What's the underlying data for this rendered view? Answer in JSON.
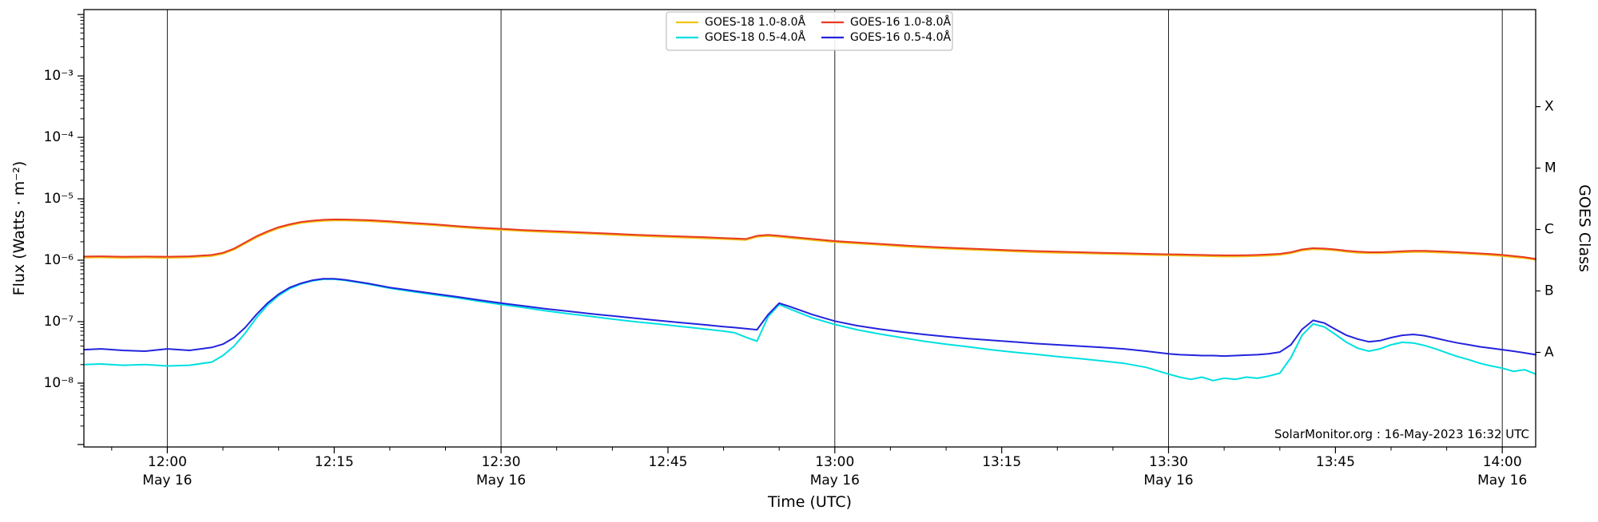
{
  "page": {
    "background": "#ffffff"
  },
  "chart_data": {
    "type": "line",
    "title": "",
    "xlabel": "Time (UTC)",
    "ylabel": "Flux (Watts · m⁻²)",
    "ylabel_right": "GOES Class",
    "watermark": "SolarMonitor.org : 16-May-2023 16:32 UTC",
    "x_unit": "minutes from 12:00 UTC on 16-May-2023",
    "xlim": [
      -7.5,
      123
    ],
    "y_log10_range": [
      -9.04,
      -1.92
    ],
    "x_gridlines_t": [
      0,
      30,
      60,
      90,
      120
    ],
    "x_minor_step": 5,
    "x_major_ticks": [
      {
        "t": 0,
        "label": "12:00",
        "sub": "May 16"
      },
      {
        "t": 15,
        "label": "12:15"
      },
      {
        "t": 30,
        "label": "12:30",
        "sub": "May 16"
      },
      {
        "t": 45,
        "label": "12:45"
      },
      {
        "t": 60,
        "label": "13:00",
        "sub": "May 16"
      },
      {
        "t": 75,
        "label": "13:15"
      },
      {
        "t": 90,
        "label": "13:30",
        "sub": "May 16"
      },
      {
        "t": 105,
        "label": "13:45"
      },
      {
        "t": 120,
        "label": "14:00",
        "sub": "May 16"
      }
    ],
    "y_major_ticks": [
      {
        "exp": -3,
        "label": "10⁻³"
      },
      {
        "exp": -4,
        "label": "10⁻⁴"
      },
      {
        "exp": -5,
        "label": "10⁻⁵"
      },
      {
        "exp": -6,
        "label": "10⁻⁶"
      },
      {
        "exp": -7,
        "label": "10⁻⁷"
      },
      {
        "exp": -8,
        "label": "10⁻⁸"
      }
    ],
    "y_unlabeled_tick_exps": [
      -2,
      -9
    ],
    "goes_class_ticks": [
      {
        "label": "X",
        "log10": -3.5
      },
      {
        "label": "M",
        "log10": -4.5
      },
      {
        "label": "C",
        "log10": -5.5
      },
      {
        "label": "B",
        "log10": -6.5
      },
      {
        "label": "A",
        "log10": -7.5
      }
    ],
    "legend": {
      "position": "upper-center",
      "columns": 2,
      "row_order": "col-major"
    },
    "x": [
      -7.5,
      -6,
      -4,
      -2,
      0,
      2,
      4,
      5,
      6,
      7,
      8,
      9,
      10,
      11,
      12,
      13,
      14,
      15,
      16,
      18,
      20,
      22,
      24,
      26,
      28,
      30,
      32,
      34,
      36,
      38,
      40,
      42,
      44,
      46,
      48,
      50,
      51,
      52,
      53,
      54,
      55,
      56,
      58,
      60,
      62,
      64,
      66,
      68,
      70,
      72,
      74,
      76,
      78,
      80,
      82,
      84,
      86,
      88,
      90,
      91,
      92,
      93,
      94,
      95,
      96,
      97,
      98,
      99,
      100,
      101,
      102,
      103,
      104,
      105,
      106,
      107,
      108,
      109,
      110,
      111,
      112,
      113,
      114,
      115,
      116,
      117,
      118,
      119,
      120,
      121,
      122,
      123
    ],
    "series": [
      {
        "name": "GOES-18 1.0-8.0Å",
        "color": "#f0c414",
        "y": [
          1.1e-06,
          1.11e-06,
          1.09e-06,
          1.1e-06,
          1.09e-06,
          1.11e-06,
          1.17e-06,
          1.27e-06,
          1.49e-06,
          1.87e-06,
          2.35e-06,
          2.83e-06,
          3.31e-06,
          3.7e-06,
          4.03e-06,
          4.22e-06,
          4.37e-06,
          4.44e-06,
          4.42e-06,
          4.32e-06,
          4.13e-06,
          3.89e-06,
          3.7e-06,
          3.46e-06,
          3.26e-06,
          3.12e-06,
          2.98e-06,
          2.88e-06,
          2.78e-06,
          2.69e-06,
          2.59e-06,
          2.5e-06,
          2.42e-06,
          2.35e-06,
          2.28e-06,
          2.21e-06,
          2.17e-06,
          2.13e-06,
          2.4e-06,
          2.48e-06,
          2.4e-06,
          2.3e-06,
          2.13e-06,
          1.97e-06,
          1.87e-06,
          1.78e-06,
          1.68e-06,
          1.6e-06,
          1.54e-06,
          1.49e-06,
          1.44e-06,
          1.39e-06,
          1.35e-06,
          1.32e-06,
          1.3e-06,
          1.27e-06,
          1.25e-06,
          1.22e-06,
          1.2e-06,
          1.19e-06,
          1.18e-06,
          1.17e-06,
          1.16e-06,
          1.15e-06,
          1.15e-06,
          1.16e-06,
          1.17e-06,
          1.19e-06,
          1.22e-06,
          1.3e-06,
          1.44e-06,
          1.51e-06,
          1.49e-06,
          1.44e-06,
          1.37e-06,
          1.32e-06,
          1.3e-06,
          1.3e-06,
          1.32e-06,
          1.34e-06,
          1.36e-06,
          1.36e-06,
          1.34e-06,
          1.32e-06,
          1.3e-06,
          1.27e-06,
          1.24e-06,
          1.21e-06,
          1.17e-06,
          1.12e-06,
          1.08e-06,
          1.01e-06
        ]
      },
      {
        "name": "GOES-18 0.5-4.0Å",
        "color": "#00e0e0",
        "y": [
          2e-08,
          2.05e-08,
          1.95e-08,
          2e-08,
          1.9e-08,
          1.95e-08,
          2.2e-08,
          2.8e-08,
          4e-08,
          6.5e-08,
          1.15e-07,
          1.85e-07,
          2.65e-07,
          3.45e-07,
          4.1e-07,
          4.6e-07,
          4.9e-07,
          4.9e-07,
          4.7e-07,
          4.1e-07,
          3.5e-07,
          3.1e-07,
          2.75e-07,
          2.45e-07,
          2.15e-07,
          1.9e-07,
          1.7e-07,
          1.5e-07,
          1.35e-07,
          1.22e-07,
          1.1e-07,
          1e-07,
          9.2e-08,
          8.4e-08,
          7.7e-08,
          7e-08,
          6.6e-08,
          5.6e-08,
          4.8e-08,
          1.2e-07,
          1.9e-07,
          1.6e-07,
          1.15e-07,
          9e-08,
          7.4e-08,
          6.3e-08,
          5.5e-08,
          4.8e-08,
          4.3e-08,
          3.9e-08,
          3.5e-08,
          3.2e-08,
          2.95e-08,
          2.7e-08,
          2.5e-08,
          2.3e-08,
          2.1e-08,
          1.8e-08,
          1.4e-08,
          1.25e-08,
          1.15e-08,
          1.25e-08,
          1.1e-08,
          1.2e-08,
          1.15e-08,
          1.25e-08,
          1.2e-08,
          1.3e-08,
          1.45e-08,
          2.6e-08,
          6e-08,
          9.2e-08,
          8.2e-08,
          6.2e-08,
          4.6e-08,
          3.7e-08,
          3.3e-08,
          3.6e-08,
          4.2e-08,
          4.6e-08,
          4.5e-08,
          4.1e-08,
          3.6e-08,
          3.1e-08,
          2.7e-08,
          2.4e-08,
          2.1e-08,
          1.9e-08,
          1.75e-08,
          1.55e-08,
          1.65e-08,
          1.4e-08
        ]
      },
      {
        "name": "GOES-16 1.0-8.0Å",
        "color": "#e83a22",
        "y": [
          1.15e-06,
          1.16e-06,
          1.14e-06,
          1.15e-06,
          1.14e-06,
          1.16e-06,
          1.22e-06,
          1.32e-06,
          1.55e-06,
          1.95e-06,
          2.45e-06,
          2.95e-06,
          3.45e-06,
          3.85e-06,
          4.2e-06,
          4.4e-06,
          4.55e-06,
          4.62e-06,
          4.6e-06,
          4.5e-06,
          4.3e-06,
          4.05e-06,
          3.85e-06,
          3.6e-06,
          3.4e-06,
          3.25e-06,
          3.1e-06,
          3e-06,
          2.9e-06,
          2.8e-06,
          2.7e-06,
          2.6e-06,
          2.52e-06,
          2.45e-06,
          2.38e-06,
          2.3e-06,
          2.26e-06,
          2.22e-06,
          2.5e-06,
          2.58e-06,
          2.5e-06,
          2.4e-06,
          2.22e-06,
          2.05e-06,
          1.95e-06,
          1.85e-06,
          1.75e-06,
          1.67e-06,
          1.6e-06,
          1.55e-06,
          1.5e-06,
          1.45e-06,
          1.41e-06,
          1.38e-06,
          1.35e-06,
          1.32e-06,
          1.3e-06,
          1.27e-06,
          1.25e-06,
          1.24e-06,
          1.23e-06,
          1.22e-06,
          1.21e-06,
          1.2e-06,
          1.2e-06,
          1.21e-06,
          1.22e-06,
          1.24e-06,
          1.27e-06,
          1.35e-06,
          1.5e-06,
          1.57e-06,
          1.55e-06,
          1.5e-06,
          1.43e-06,
          1.38e-06,
          1.35e-06,
          1.35e-06,
          1.37e-06,
          1.4e-06,
          1.42e-06,
          1.42e-06,
          1.4e-06,
          1.38e-06,
          1.35e-06,
          1.32e-06,
          1.29e-06,
          1.26e-06,
          1.22e-06,
          1.17e-06,
          1.12e-06,
          1.05e-06
        ]
      },
      {
        "name": "GOES-16 0.5-4.0Å",
        "color": "#2323dd",
        "y": [
          3.5e-08,
          3.6e-08,
          3.4e-08,
          3.3e-08,
          3.6e-08,
          3.4e-08,
          3.8e-08,
          4.3e-08,
          5.5e-08,
          8e-08,
          1.3e-07,
          2e-07,
          2.8e-07,
          3.6e-07,
          4.2e-07,
          4.7e-07,
          5e-07,
          5e-07,
          4.8e-07,
          4.2e-07,
          3.6e-07,
          3.2e-07,
          2.85e-07,
          2.55e-07,
          2.25e-07,
          2e-07,
          1.8e-07,
          1.62e-07,
          1.48e-07,
          1.35e-07,
          1.24e-07,
          1.14e-07,
          1.05e-07,
          9.7e-08,
          9e-08,
          8.3e-08,
          8e-08,
          7.7e-08,
          7.4e-08,
          1.3e-07,
          2e-07,
          1.75e-07,
          1.3e-07,
          1.02e-07,
          8.6e-08,
          7.6e-08,
          6.8e-08,
          6.2e-08,
          5.7e-08,
          5.3e-08,
          5e-08,
          4.7e-08,
          4.4e-08,
          4.2e-08,
          4e-08,
          3.8e-08,
          3.6e-08,
          3.3e-08,
          3e-08,
          2.9e-08,
          2.85e-08,
          2.8e-08,
          2.8e-08,
          2.75e-08,
          2.8e-08,
          2.85e-08,
          2.9e-08,
          3e-08,
          3.2e-08,
          4.2e-08,
          7.5e-08,
          1.05e-07,
          9.5e-08,
          7.5e-08,
          6e-08,
          5.2e-08,
          4.7e-08,
          4.9e-08,
          5.5e-08,
          6e-08,
          6.2e-08,
          5.9e-08,
          5.4e-08,
          4.9e-08,
          4.5e-08,
          4.2e-08,
          3.9e-08,
          3.7e-08,
          3.5e-08,
          3.3e-08,
          3.1e-08,
          2.9e-08
        ]
      }
    ]
  }
}
